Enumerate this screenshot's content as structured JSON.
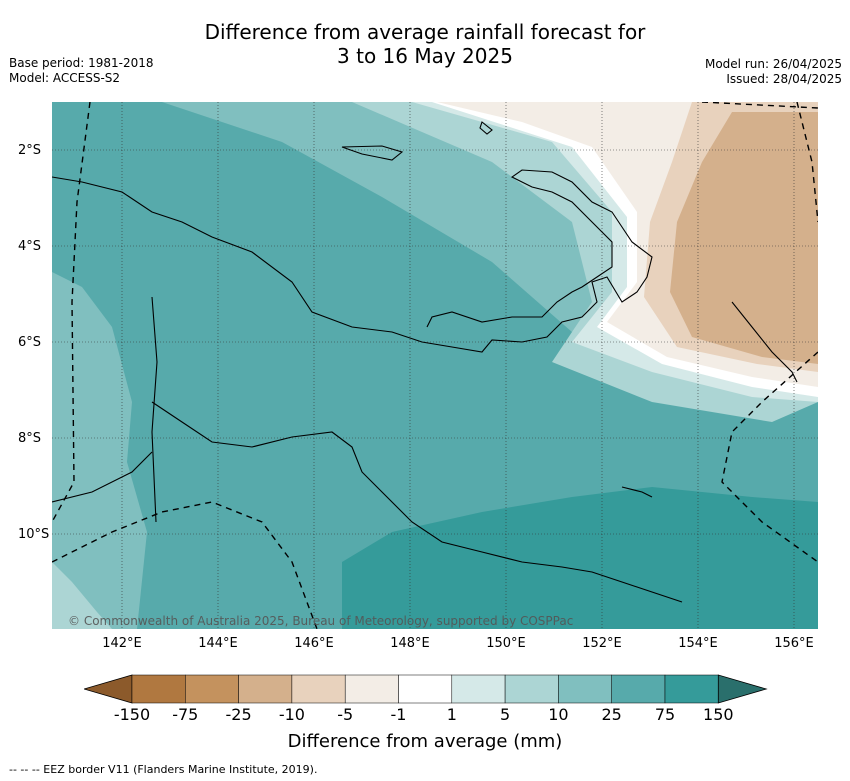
{
  "title_line1": "Difference from average rainfall forecast for",
  "title_line2": "3 to 16 May 2025",
  "base_period": "Base period: 1981-2018",
  "model": "Model: ACCESS-S2",
  "model_run": "Model run: 26/04/2025",
  "issued": "Issued: 28/04/2025",
  "lat_labels": [
    "2°S",
    "4°S",
    "6°S",
    "8°S",
    "10°S"
  ],
  "lon_labels": [
    "142°E",
    "144°E",
    "146°E",
    "148°E",
    "150°E",
    "152°E",
    "154°E",
    "156°E"
  ],
  "copyright": "© Commonwealth of Australia 2025, Bureau of Meteorology, supported by COSPPac",
  "colorbar": {
    "ticks": [
      "-150",
      "-75",
      "-25",
      "-10",
      "-5",
      "-1",
      "1",
      "5",
      "10",
      "25",
      "75",
      "150"
    ],
    "colors": [
      "#8c5a2b",
      "#b07840",
      "#c4925e",
      "#d4b08c",
      "#e8d2bd",
      "#f3ede6",
      "#ffffff",
      "#d5e9e8",
      "#acd5d4",
      "#80bfbf",
      "#57aaab",
      "#359b9a",
      "#2a6f6c"
    ],
    "label": "Difference from average (mm)"
  },
  "footnote": "--  --  -- EEZ border V11 (Flanders Marine Institute, 2019)."
}
